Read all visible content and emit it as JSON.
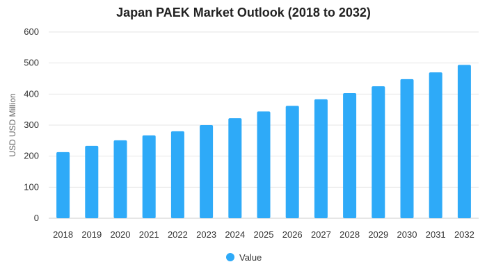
{
  "chart_data": {
    "type": "bar",
    "title": "Japan PAEK Market Outlook (2018 to 2032)",
    "xlabel": "",
    "ylabel": "USD USD Million",
    "categories": [
      "2018",
      "2019",
      "2020",
      "2021",
      "2022",
      "2023",
      "2024",
      "2025",
      "2026",
      "2027",
      "2028",
      "2029",
      "2030",
      "2031",
      "2032"
    ],
    "series": [
      {
        "name": "Value",
        "values": [
          213,
          233,
          251,
          267,
          280,
          300,
          322,
          344,
          362,
          383,
          403,
          425,
          448,
          470,
          494
        ]
      }
    ],
    "ylim": [
      0,
      600
    ],
    "yticks": [
      0,
      100,
      200,
      300,
      400,
      500,
      600
    ],
    "grid": true,
    "legend": "bottom-center",
    "color": "#2eaaf8"
  }
}
